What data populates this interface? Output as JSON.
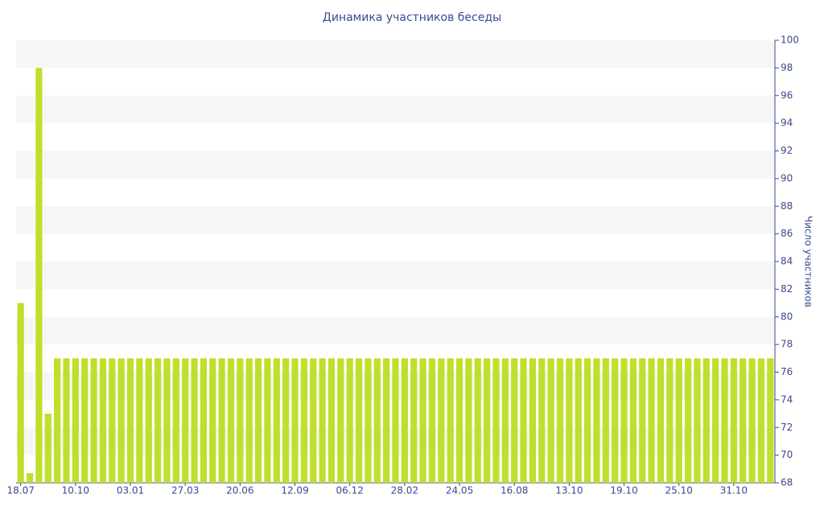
{
  "chart_data": {
    "type": "bar",
    "title": "Динамика участников беседы",
    "y_axis_label": "Число участников",
    "categories": [
      "18.07",
      null,
      null,
      null,
      null,
      null,
      "10.10",
      null,
      null,
      null,
      null,
      null,
      "03.01",
      null,
      null,
      null,
      null,
      null,
      "27.03",
      null,
      null,
      null,
      null,
      null,
      "20.06",
      null,
      null,
      null,
      null,
      null,
      "12.09",
      null,
      null,
      null,
      null,
      null,
      "06.12",
      null,
      null,
      null,
      null,
      null,
      "28.02",
      null,
      null,
      null,
      null,
      null,
      "24.05",
      null,
      null,
      null,
      null,
      null,
      "16.08",
      null,
      null,
      null,
      null,
      null,
      "13.10",
      null,
      null,
      null,
      null,
      null,
      "19.10",
      null,
      null,
      null,
      null,
      null,
      "25.10",
      null,
      null,
      null,
      null,
      null,
      "31.10",
      null,
      null,
      null,
      null
    ],
    "values": [
      81,
      68.7,
      98,
      73,
      77,
      77,
      77,
      77,
      77,
      77,
      77,
      77,
      77,
      77,
      77,
      77,
      77,
      77,
      77,
      77,
      77,
      77,
      77,
      77,
      77,
      77,
      77,
      77,
      77,
      77,
      77,
      77,
      77,
      77,
      77,
      77,
      77,
      77,
      77,
      77,
      77,
      77,
      77,
      77,
      77,
      77,
      77,
      77,
      77,
      77,
      77,
      77,
      77,
      77,
      77,
      77,
      77,
      77,
      77,
      77,
      77,
      77,
      77,
      77,
      77,
      77,
      77,
      77,
      77,
      77,
      77,
      77,
      77,
      77,
      77,
      77,
      77,
      77,
      77,
      77,
      77,
      77,
      77
    ],
    "color": "#bedf2c",
    "ylim": [
      68,
      100
    ],
    "yticks": [
      68,
      70,
      72,
      74,
      76,
      78,
      80,
      82,
      84,
      86,
      88,
      90,
      92,
      94,
      96,
      98,
      100
    ],
    "grid": "bands",
    "y_axis_side": "right"
  }
}
